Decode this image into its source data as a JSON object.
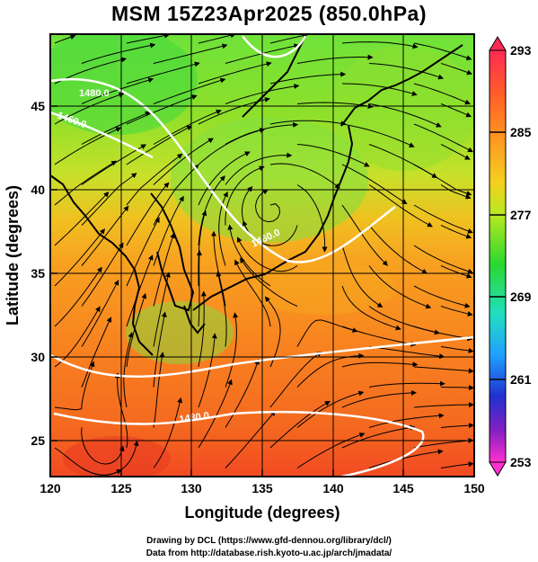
{
  "title": "MSM 15Z23Apr2025 (850.0hPa)",
  "axes": {
    "xlabel": "Longitude (degrees)",
    "ylabel": "Latitude  (degrees)",
    "x_ticks": [
      "120",
      "125",
      "130",
      "135",
      "140",
      "145",
      "150"
    ],
    "y_ticks": [
      "25",
      "30",
      "35",
      "40",
      "45"
    ]
  },
  "map": {
    "lon_range": [
      120,
      150
    ],
    "lat_range": [
      22.4,
      47.6
    ],
    "grid_lines": true,
    "field": "temperature (K) at 850.0hPa",
    "streamlines": "wind",
    "contour_labels": [
      "1480.0",
      "1460.0",
      "1460.0",
      "1480.0"
    ]
  },
  "colorbar": {
    "ticks": [
      "293",
      "285",
      "277",
      "269",
      "261",
      "253"
    ],
    "range": [
      253,
      293
    ],
    "colors": [
      "#ff2a55",
      "#ff5a2a",
      "#ff9a20",
      "#f3d020",
      "#b8e820",
      "#2ad830",
      "#20e0c0",
      "#20a0ff",
      "#2030d0",
      "#8020c0",
      "#ff30d0"
    ]
  },
  "credit": {
    "line1": "Drawing by DCL (https://www.gfd-dennou.org/library/dcl/)",
    "line2": "Data from http://database.rish.kyoto-u.ac.jp/arch/jmadata/"
  }
}
